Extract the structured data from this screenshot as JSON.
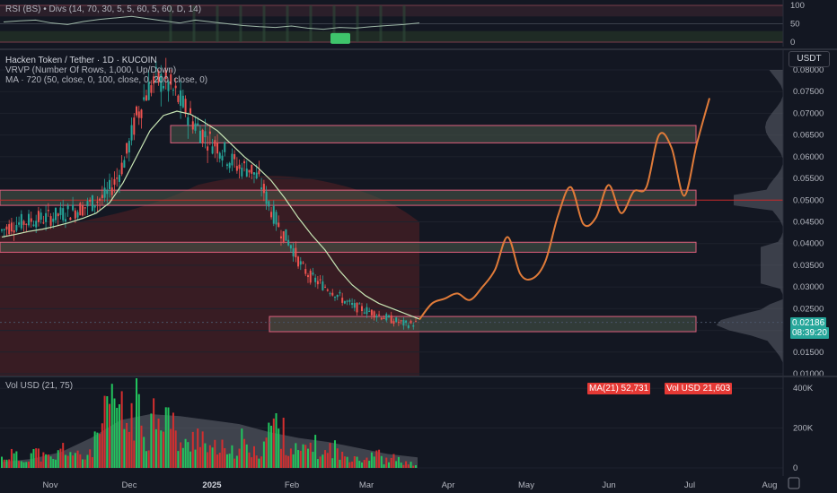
{
  "colors": {
    "background": "#131722",
    "up": "#26a69a",
    "up_vol": "#22c55e",
    "down": "#ef5350",
    "down_vol": "#d32f2f",
    "ma": "#c8e6b5",
    "projection": "#e07b39",
    "zone_fill": "#4a5a4a",
    "zone_border": "#e0607e",
    "current_price": "#4caf50"
  },
  "rsi_pane": {
    "legend": "RSI (BS) • Divs (14, 70, 30, 5, 5, 60, 5, 60, D, 14)",
    "axis_ticks": [
      "100",
      "50",
      "0"
    ]
  },
  "main_pane": {
    "title": "Hacken Token / Tether · 1D · KUCOIN",
    "legend_vrvp": "VRVP (Number Of Rows, 1,000, Up/Down)",
    "legend_ma": "MA · 720 (50, close, 0, 100, close, 0, 200, close, 0)",
    "currency_button": "USDT",
    "price_ticks": [
      "0.08000",
      "0.07500",
      "0.07000",
      "0.06500",
      "0.06000",
      "0.05500",
      "0.05000",
      "0.04500",
      "0.04000",
      "0.03500",
      "0.03000",
      "0.02500",
      "0.02000",
      "0.01500",
      "0.01000"
    ],
    "current_price": "0.02186",
    "countdown": "08:39:20"
  },
  "volume_pane": {
    "legend": "Vol USD (21, 75)",
    "ma_badge": "MA(21) 52,731",
    "vol_badge": "Vol USD 21,603",
    "axis_ticks": [
      "400K",
      "200K",
      "0"
    ]
  },
  "time_axis": {
    "labels": [
      "Nov",
      "Dec",
      "2025",
      "Feb",
      "Mar",
      "Apr",
      "May",
      "Jun",
      "Jul",
      "Aug"
    ]
  },
  "chart_data": {
    "type": "candlestick",
    "symbol": "Hacken Token / Tether",
    "interval": "1D",
    "exchange": "KUCOIN",
    "price_range": [
      0.01,
      0.08
    ],
    "horizontal_zones": [
      {
        "from": 0.0632,
        "to": 0.0672
      },
      {
        "from": 0.0488,
        "to": 0.0523
      },
      {
        "from": 0.038,
        "to": 0.0403
      },
      {
        "from": 0.0197,
        "to": 0.0232
      }
    ],
    "key_level": 0.05,
    "closes_approx": [
      0.043,
      0.0442,
      0.0449,
      0.0455,
      0.0458,
      0.0462,
      0.047,
      0.0476,
      0.0484,
      0.0497,
      0.0508,
      0.0545,
      0.06,
      0.069,
      0.075,
      0.0778,
      0.077,
      0.0735,
      0.07,
      0.0665,
      0.064,
      0.0625,
      0.0595,
      0.0575,
      0.0575,
      0.054,
      0.048,
      0.043,
      0.0395,
      0.0345,
      0.032,
      0.0305,
      0.029,
      0.027,
      0.0255,
      0.0248,
      0.024,
      0.023,
      0.0222,
      0.0214,
      0.0216
    ],
    "ma_approx": [
      0.0415,
      0.0421,
      0.0428,
      0.0433,
      0.044,
      0.0448,
      0.0458,
      0.047,
      0.0494,
      0.054,
      0.06,
      0.066,
      0.0695,
      0.0705,
      0.0698,
      0.068,
      0.066,
      0.063,
      0.06,
      0.0575,
      0.0545,
      0.0505,
      0.046,
      0.042,
      0.0385,
      0.034,
      0.0305,
      0.028,
      0.0262,
      0.025,
      0.0238,
      0.0226
    ],
    "projection_approx": [
      0.0225,
      0.0262,
      0.0273,
      0.0285,
      0.027,
      0.03,
      0.034,
      0.0415,
      0.033,
      0.032,
      0.036,
      0.0465,
      0.053,
      0.0445,
      0.046,
      0.0535,
      0.047,
      0.052,
      0.053,
      0.065,
      0.062,
      0.051,
      0.063,
      0.0735
    ],
    "volume_range": [
      0,
      450000
    ],
    "volume_approx": [
      60000,
      90000,
      40000,
      110000,
      70000,
      50000,
      130000,
      80000,
      60000,
      150000,
      300000,
      420000,
      260000,
      380000,
      200000,
      420000,
      330000,
      170000,
      120000,
      260000,
      90000,
      140000,
      60000,
      190000,
      80000,
      110000,
      280000,
      230000,
      120000,
      90000,
      160000,
      70000,
      140000,
      60000,
      90000,
      50000,
      110000,
      40000,
      60000,
      30000,
      21603
    ],
    "volume_ma_approx": [
      30000,
      45000,
      80000,
      150000,
      240000,
      270000,
      260000,
      240000,
      220000,
      180000,
      150000,
      130000,
      100000,
      70000,
      52731
    ]
  }
}
